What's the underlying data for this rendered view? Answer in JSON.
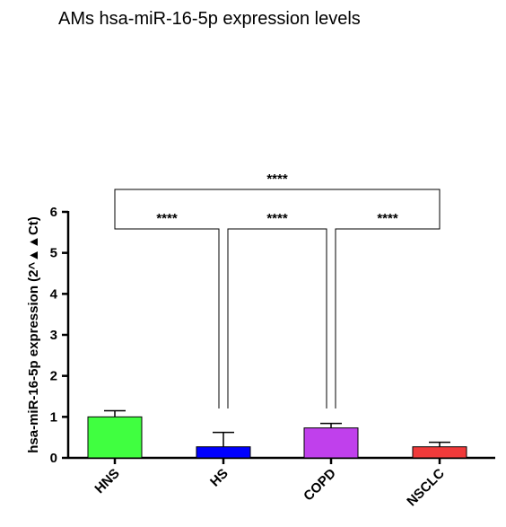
{
  "chart_data": {
    "type": "bar",
    "title": "AMs hsa-miR-16-5p expression levels",
    "xlabel": "",
    "ylabel": "hsa-miR-16-5p expression (2^▲▲Ct)",
    "ylim": [
      0,
      6
    ],
    "yticks": [
      "0",
      "1",
      "2",
      "3",
      "4",
      "5",
      "6"
    ],
    "categories": [
      "HNS",
      "HS",
      "COPD",
      "NSCLC"
    ],
    "values": [
      1.0,
      0.27,
      0.73,
      0.27
    ],
    "error_upper": [
      1.15,
      0.62,
      0.84,
      0.38
    ],
    "colors": [
      "#40ff40",
      "#0000ff",
      "#c040ec",
      "#f03a3a"
    ],
    "grid": false,
    "significance": [
      {
        "from": "HNS",
        "to": "NSCLC",
        "label": "****"
      },
      {
        "from": "HNS",
        "to": "HS",
        "label": "****"
      },
      {
        "from": "HS",
        "to": "COPD",
        "label": "****"
      },
      {
        "from": "COPD",
        "to": "NSCLC",
        "label": "****"
      }
    ]
  }
}
